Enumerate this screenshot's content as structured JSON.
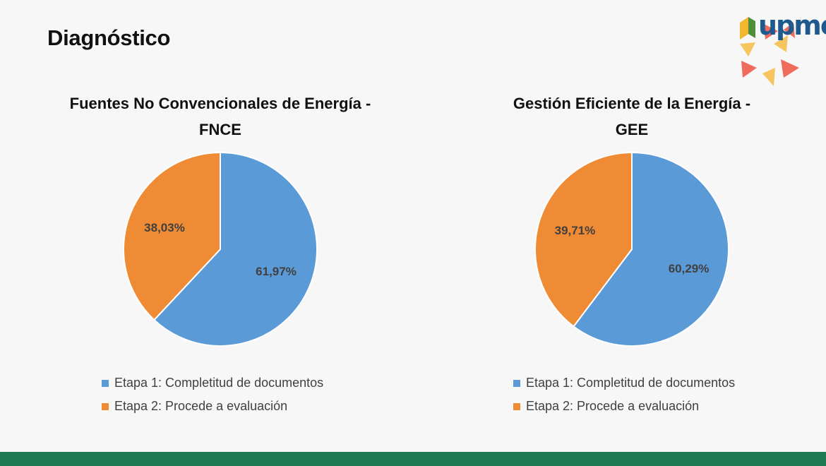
{
  "slide": {
    "title": "Diagnóstico"
  },
  "logo": {
    "text": "upme"
  },
  "colors": {
    "etapa1": "#5a9ad6",
    "etapa2": "#ef8a35",
    "footer": "#1d7a54"
  },
  "chart_data": [
    {
      "type": "pie",
      "title_lines": [
        "Fuentes No Convencionales de Energía -",
        "FNCE"
      ],
      "categories": [
        "Etapa 1: Completitud de documentos",
        "Etapa 2: Procede a evaluación"
      ],
      "values": [
        61.97,
        38.03
      ],
      "data_labels": [
        "61,97%",
        "38,03%"
      ],
      "legend": "bottom"
    },
    {
      "type": "pie",
      "title_lines": [
        "Gestión Eficiente de la Energía -",
        "GEE"
      ],
      "categories": [
        "Etapa 1: Completitud de documentos",
        "Etapa 2: Procede a evaluación"
      ],
      "values": [
        60.29,
        39.71
      ],
      "data_labels": [
        "60,29%",
        "39,71%"
      ],
      "legend": "bottom"
    }
  ]
}
